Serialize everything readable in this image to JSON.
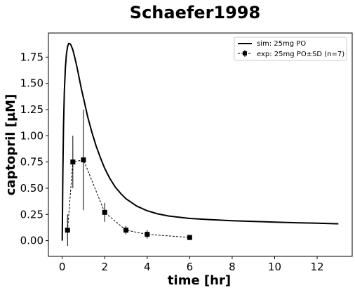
{
  "chart_data": {
    "type": "line",
    "title": "Schaefer1998",
    "xlabel": "time [hr]",
    "ylabel": "captopril [µM]",
    "xlim": [
      -0.65,
      13.65
    ],
    "ylim": [
      -0.15,
      1.98
    ],
    "xticks": [
      0,
      2,
      4,
      6,
      8,
      10,
      12
    ],
    "xtick_labels": [
      "0",
      "2",
      "4",
      "6",
      "8",
      "10",
      "12"
    ],
    "yticks": [
      0.0,
      0.25,
      0.5,
      0.75,
      1.0,
      1.25,
      1.5,
      1.75
    ],
    "ytick_labels": [
      "0.00",
      "0.25",
      "0.50",
      "0.75",
      "1.00",
      "1.25",
      "1.50",
      "1.75"
    ],
    "grid": false,
    "legend_position": "top-right",
    "series": [
      {
        "name": "sim: 25mg PO",
        "style": "solid",
        "color": "#000000",
        "x": [
          0,
          0.03,
          0.06,
          0.1,
          0.15,
          0.2,
          0.25,
          0.3,
          0.35,
          0.4,
          0.5,
          0.6,
          0.7,
          0.8,
          0.9,
          1.0,
          1.2,
          1.4,
          1.6,
          1.8,
          2.0,
          2.25,
          2.5,
          2.75,
          3.0,
          3.5,
          4.0,
          4.5,
          5.0,
          6.0,
          7.0,
          8.0,
          9.0,
          10.0,
          11.0,
          12.0,
          13.0
        ],
        "y": [
          0.0,
          0.65,
          1.08,
          1.42,
          1.65,
          1.78,
          1.85,
          1.88,
          1.88,
          1.87,
          1.82,
          1.74,
          1.65,
          1.55,
          1.45,
          1.36,
          1.18,
          1.03,
          0.9,
          0.79,
          0.69,
          0.59,
          0.51,
          0.45,
          0.4,
          0.33,
          0.285,
          0.255,
          0.235,
          0.212,
          0.2,
          0.19,
          0.183,
          0.177,
          0.171,
          0.166,
          0.161
        ]
      },
      {
        "name": "exp: 25mg PO±SD (n=7)",
        "style": "dashed",
        "marker": "square",
        "color": "#000000",
        "x": [
          0.25,
          0.5,
          1.0,
          2.0,
          3.0,
          4.0,
          6.0
        ],
        "y": [
          0.1,
          0.75,
          0.77,
          0.27,
          0.1,
          0.06,
          0.03
        ],
        "yerr": [
          0.15,
          0.25,
          0.48,
          0.09,
          0.04,
          0.04,
          0.025
        ]
      }
    ]
  }
}
